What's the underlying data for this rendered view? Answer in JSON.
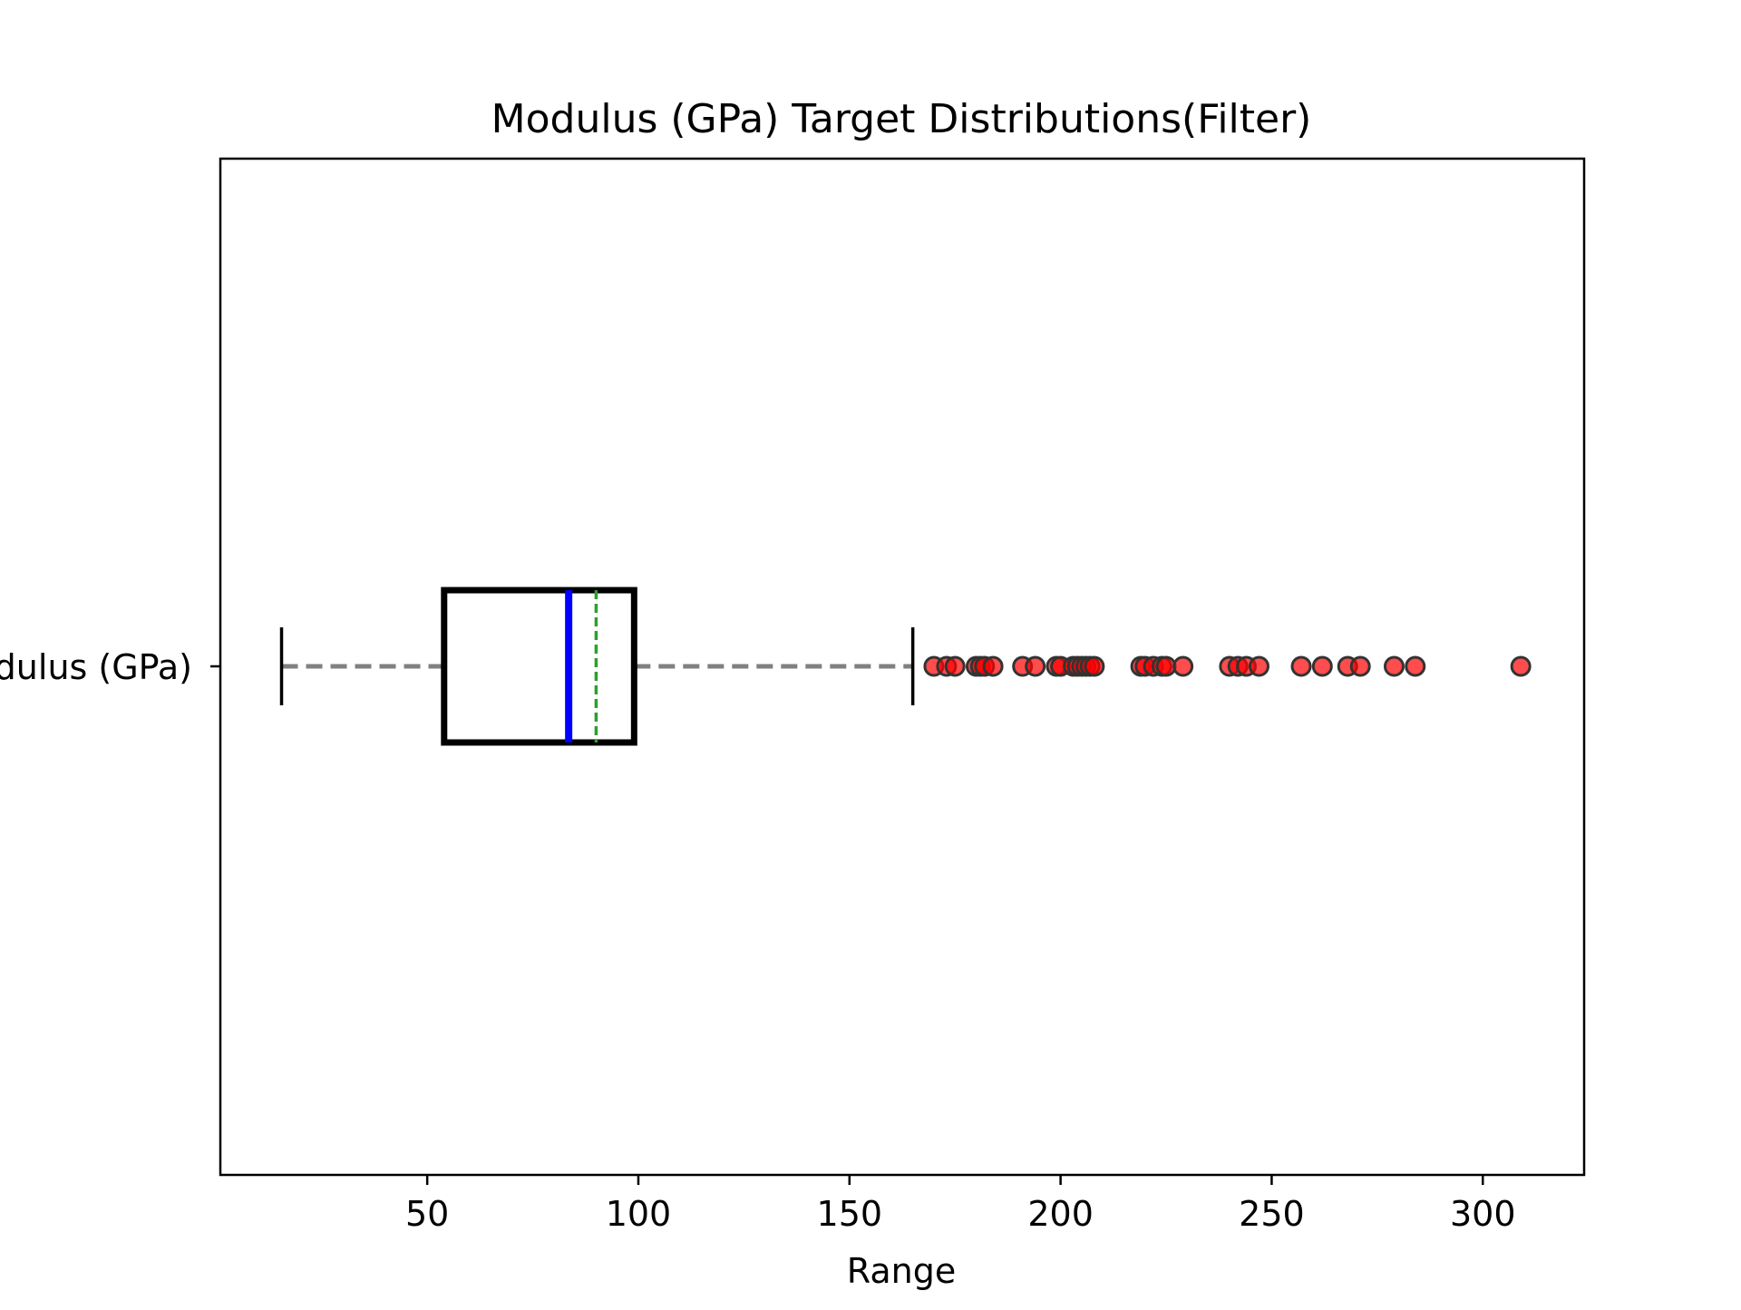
{
  "chart_data": {
    "type": "boxplot",
    "orientation": "horizontal",
    "title": "Modulus (GPa) Target Distributions(Filter)",
    "xlabel": "Range",
    "ylabel": "",
    "category_label": "Modulus (GPa)",
    "xlim": [
      1,
      324
    ],
    "xticks": [
      50,
      100,
      150,
      200,
      250,
      300
    ],
    "box": {
      "whisker_low": 15.5,
      "q1": 54,
      "median": 83.5,
      "mean": 90,
      "q3": 99,
      "whisker_high": 165
    },
    "outliers": [
      170,
      173,
      175,
      180,
      181,
      182,
      184,
      191,
      194,
      199,
      200,
      203,
      204,
      205,
      206,
      207,
      208,
      219,
      220,
      222,
      224,
      225,
      229,
      240,
      242,
      244,
      247,
      257,
      262,
      268,
      271,
      279,
      284,
      309
    ],
    "grid": false,
    "legend": "none",
    "colors": {
      "box": "#000000",
      "whisker": "#808080",
      "cap": "#000000",
      "median": "#0000ff",
      "mean": "#2ca02c",
      "outlier_fill": "#ff0000",
      "outlier_edge": "#333333"
    }
  }
}
